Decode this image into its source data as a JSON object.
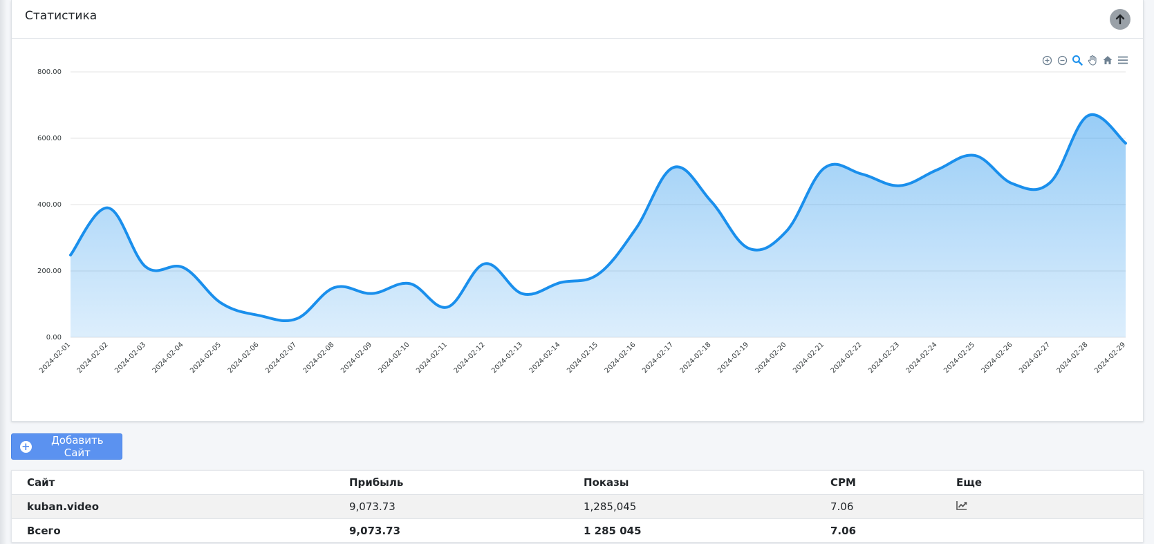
{
  "card": {
    "title": "Статистика"
  },
  "chart_data": {
    "type": "area",
    "x": [
      "2024-02-01",
      "2024-02-02",
      "2024-02-03",
      "2024-02-04",
      "2024-02-05",
      "2024-02-06",
      "2024-02-07",
      "2024-02-08",
      "2024-02-09",
      "2024-02-10",
      "2024-02-11",
      "2024-02-12",
      "2024-02-13",
      "2024-02-14",
      "2024-02-15",
      "2024-02-16",
      "2024-02-17",
      "2024-02-18",
      "2024-02-19",
      "2024-02-20",
      "2024-02-21",
      "2024-02-22",
      "2024-02-23",
      "2024-02-24",
      "2024-02-25",
      "2024-02-26",
      "2024-02-27",
      "2024-02-28",
      "2024-02-29"
    ],
    "values": [
      248,
      390,
      212,
      210,
      103,
      66,
      56,
      150,
      132,
      162,
      91,
      222,
      131,
      165,
      190,
      327,
      512,
      410,
      268,
      320,
      510,
      492,
      457,
      505,
      548,
      463,
      467,
      668,
      585
    ],
    "yticks": [
      "0.00",
      "200.00",
      "400.00",
      "600.00",
      "800.00"
    ],
    "ylim": [
      0,
      800
    ],
    "grid": true,
    "color": "#1a8fec"
  },
  "toolbar": {
    "icons": [
      "zoom-in-icon",
      "zoom-out-icon",
      "selection-zoom-icon",
      "pan-icon",
      "reset-home-icon",
      "menu-icon"
    ]
  },
  "add_button": {
    "label": "Добавить Сайт"
  },
  "table": {
    "headers": {
      "site": "Сайт",
      "profit": "Прибыль",
      "views": "Показы",
      "cpm": "CPM",
      "more": "Еще"
    },
    "row": {
      "site": "kuban.video",
      "profit": "9,073.73",
      "views": "1,285,045",
      "cpm": "7.06"
    },
    "total": {
      "site": "Всего",
      "profit": "9,073.73",
      "views": "1 285 045",
      "cpm": "7.06"
    }
  }
}
